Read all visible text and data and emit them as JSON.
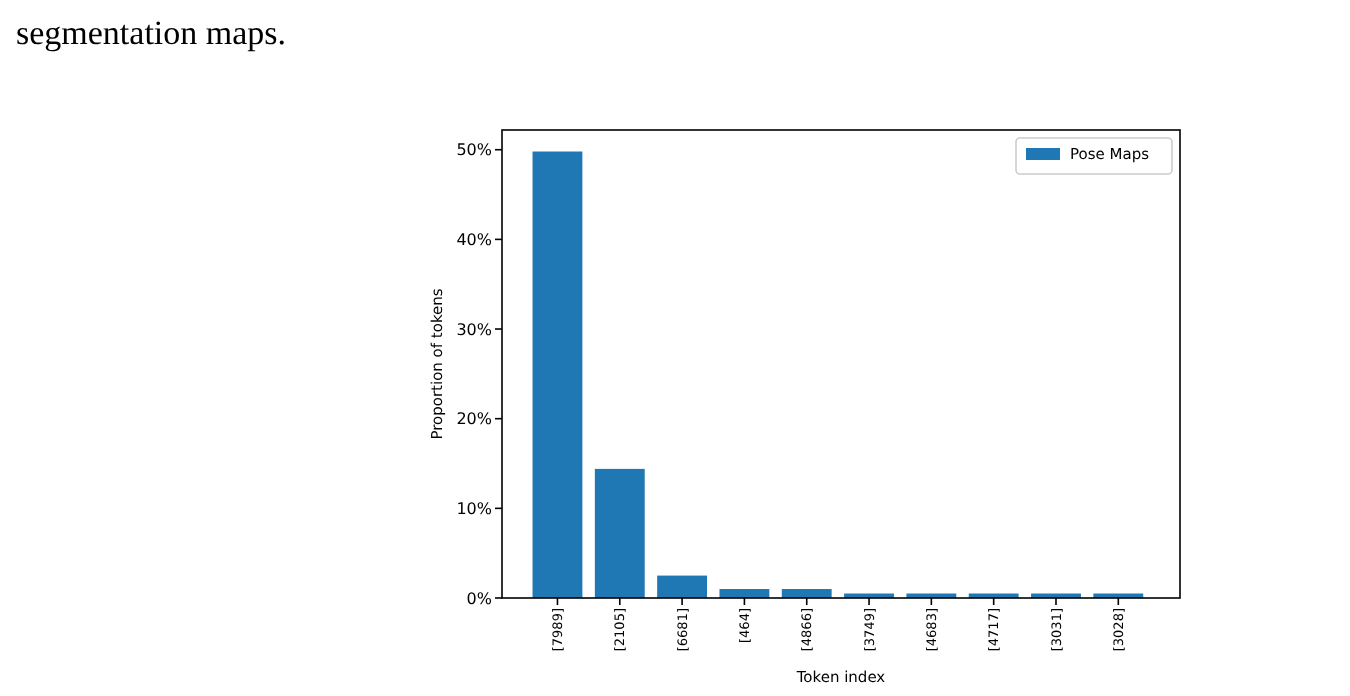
{
  "chart_data": {
    "type": "bar",
    "xlabel": "Token index",
    "ylabel": "Proportion of tokens",
    "categories": [
      "[7989]",
      "[2105]",
      "[6681]",
      "[464]",
      "[4866]",
      "[3749]",
      "[4683]",
      "[4717]",
      "[3031]",
      "[3028]"
    ],
    "series": [
      {
        "name": "Pose Maps",
        "color": "#1f77b4",
        "values": [
          49.8,
          14.4,
          2.5,
          1.0,
          1.0,
          0.5,
          0.5,
          0.5,
          0.5,
          0.5
        ]
      }
    ],
    "ylim": [
      0,
      52.2
    ],
    "yticks": [
      {
        "value": 0,
        "label": "0%"
      },
      {
        "value": 10,
        "label": "10%"
      },
      {
        "value": 20,
        "label": "20%"
      },
      {
        "value": 30,
        "label": "30%"
      },
      {
        "value": 40,
        "label": "40%"
      },
      {
        "value": 50,
        "label": "50%"
      }
    ],
    "legend": "top right",
    "grid": false,
    "annotations": [
      "segmentation maps."
    ]
  }
}
